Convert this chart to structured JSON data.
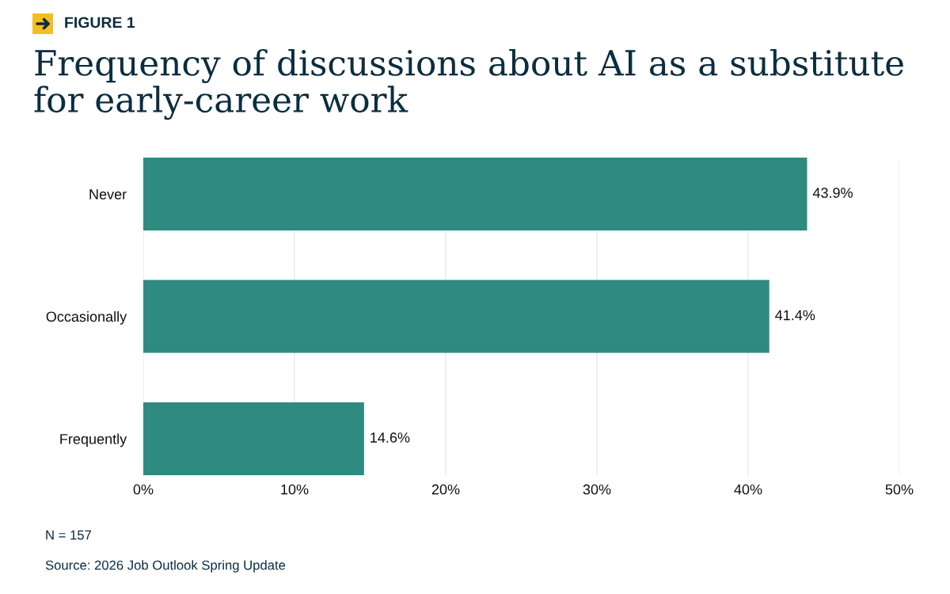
{
  "chart_data": {
    "type": "bar",
    "orientation": "horizontal",
    "title": "Frequency of discussions about AI as a substitute for early-career work",
    "categories": [
      "Never",
      "Occasionally",
      "Frequently"
    ],
    "values": [
      43.9,
      41.4,
      14.6
    ],
    "color": "#2f8a80",
    "value_labels": [
      "43.9%",
      "41.4%",
      "14.6%"
    ],
    "xlim": [
      0,
      50
    ],
    "xticks": [
      {
        "value": 0,
        "label": "0%"
      },
      {
        "value": 10,
        "label": "10%"
      },
      {
        "value": 20,
        "label": "20%"
      },
      {
        "value": 30,
        "label": "30%"
      },
      {
        "value": 40,
        "label": "40%"
      },
      {
        "value": 50,
        "label": "50%"
      }
    ],
    "grid": "x",
    "annotations": [
      "FIGURE 1",
      "N = 157",
      "Source: 2026 Job Outlook Spring Update"
    ]
  }
}
